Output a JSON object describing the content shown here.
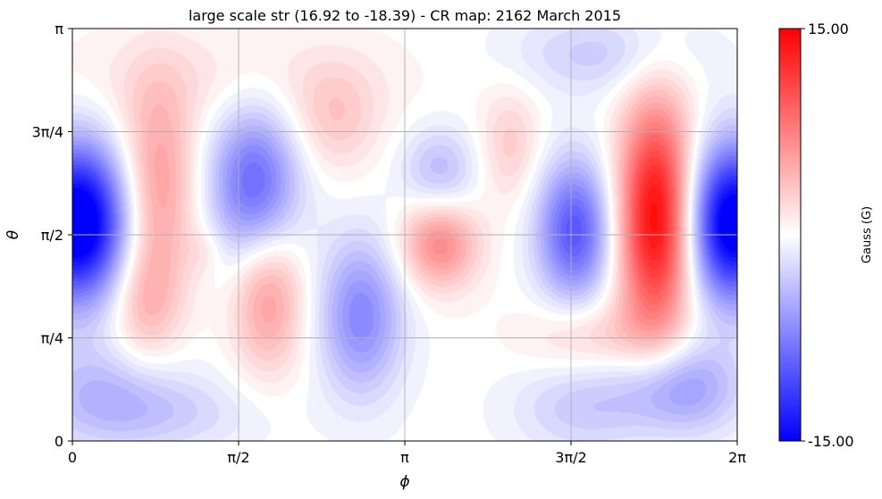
{
  "chart_data": {
    "type": "heatmap",
    "title": "large scale str (16.92 to -18.39) - CR map: 2162 March 2015",
    "xlabel": "ϕ",
    "ylabel": "θ",
    "x_ticks": [
      "0",
      "π/2",
      "π",
      "3π/2",
      "2π"
    ],
    "y_ticks": [
      "0",
      "π/4",
      "π/2",
      "3π/4",
      "π"
    ],
    "xlim": [
      0,
      6.2832
    ],
    "ylim": [
      0,
      3.1416
    ],
    "grid": true,
    "colorbar": {
      "label": "Gauss (G)",
      "max_label": "15.00",
      "min_label": "-15.00",
      "vmin": -15,
      "vmax": 15,
      "colors": {
        "low": "#0000ff",
        "mid": "#ffffff",
        "high": "#ff0000"
      }
    },
    "blobs": [
      {
        "phi": 0.05,
        "theta": 1.66,
        "sphi": 0.33,
        "stheta": 0.42,
        "value": -18
      },
      {
        "phi": 6.25,
        "theta": 1.66,
        "sphi": 0.3,
        "stheta": 0.42,
        "value": -17
      },
      {
        "phi": 0.8,
        "theta": 1.95,
        "sphi": 0.26,
        "stheta": 0.55,
        "value": 6
      },
      {
        "phi": 0.68,
        "theta": 1.05,
        "sphi": 0.24,
        "stheta": 0.34,
        "value": 4
      },
      {
        "phi": 1.72,
        "theta": 1.95,
        "sphi": 0.3,
        "stheta": 0.42,
        "value": -9
      },
      {
        "phi": 1.85,
        "theta": 1.1,
        "sphi": 0.24,
        "stheta": 0.4,
        "value": 6
      },
      {
        "phi": 2.48,
        "theta": 2.45,
        "sphi": 0.3,
        "stheta": 0.3,
        "value": 3
      },
      {
        "phi": 2.73,
        "theta": 0.95,
        "sphi": 0.28,
        "stheta": 0.42,
        "value": -7
      },
      {
        "phi": 3.47,
        "theta": 1.5,
        "sphi": 0.26,
        "stheta": 0.24,
        "value": 7
      },
      {
        "phi": 3.47,
        "theta": 2.05,
        "sphi": 0.25,
        "stheta": 0.24,
        "value": -4
      },
      {
        "phi": 4.14,
        "theta": 2.25,
        "sphi": 0.2,
        "stheta": 0.3,
        "value": 3
      },
      {
        "phi": 4.75,
        "theta": 1.6,
        "sphi": 0.25,
        "stheta": 0.38,
        "value": -10
      },
      {
        "phi": 5.52,
        "theta": 1.7,
        "sphi": 0.25,
        "stheta": 0.62,
        "value": 15
      },
      {
        "phi": 4.9,
        "theta": 0.8,
        "sphi": 0.45,
        "stheta": 0.2,
        "value": 3
      },
      {
        "phi": 5.75,
        "theta": 0.4,
        "sphi": 0.4,
        "stheta": 0.25,
        "value": -6
      },
      {
        "phi": 4.8,
        "theta": 0.25,
        "sphi": 0.45,
        "stheta": 0.25,
        "value": -3
      },
      {
        "phi": 0.3,
        "theta": 0.35,
        "sphi": 0.5,
        "stheta": 0.28,
        "value": -4
      },
      {
        "phi": 1.0,
        "theta": 0.2,
        "sphi": 0.6,
        "stheta": 0.2,
        "value": -2
      },
      {
        "phi": 5.0,
        "theta": 2.95,
        "sphi": 0.6,
        "stheta": 0.22,
        "value": -3
      },
      {
        "phi": 1.4,
        "theta": 2.75,
        "sphi": 1.2,
        "stheta": 0.28,
        "value": 1.5
      },
      {
        "phi": 1.25,
        "theta": 1.45,
        "sphi": 0.12,
        "stheta": 0.14,
        "value": 1.5
      }
    ]
  }
}
